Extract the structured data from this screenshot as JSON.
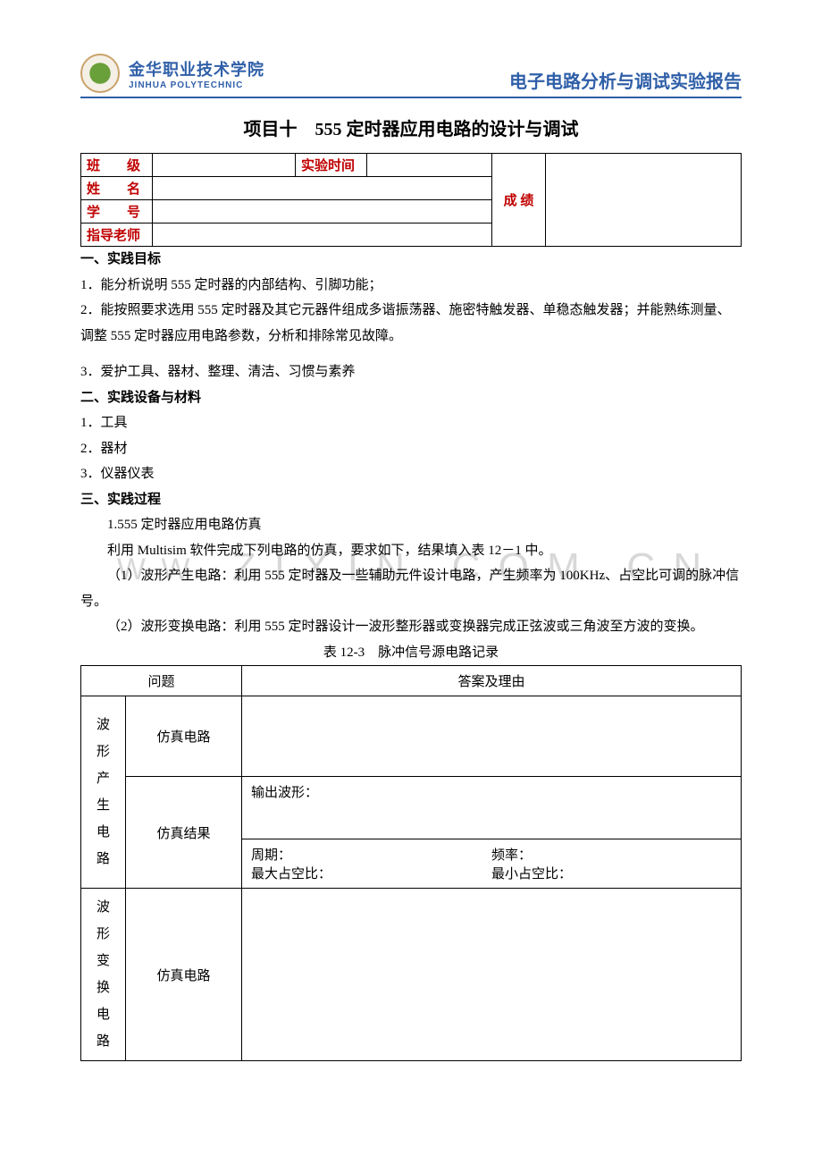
{
  "header": {
    "school_cn": "金华职业技术学院",
    "school_en": "JINHUA POLYTECHNIC",
    "doc_type": "电子电路分析与调试实验报告"
  },
  "title": "项目十　555 定时器应用电路的设计与调试",
  "info": {
    "class_lbl": "班　　级",
    "class_val": "",
    "time_lbl": "实验时间",
    "time_val": "",
    "name_lbl": "姓　　名",
    "name_val": "",
    "id_lbl": "学　　号",
    "id_val": "",
    "teacher_lbl": "指导老师",
    "teacher_val": "",
    "score_lbl": "成  绩",
    "score_val": ""
  },
  "sections": {
    "s1_h": "一、实践目标",
    "s1_1": "1．能分析说明 555 定时器的内部结构、引脚功能；",
    "s1_2": "2．能按照要求选用 555 定时器及其它元器件组成多谐振荡器、施密特触发器、单稳态触发器；并能熟练测量、调整 555 定时器应用电路参数，分析和排除常见故障。",
    "s1_3": "3．爱护工具、器材、整理、清洁、习惯与素养",
    "s2_h": "二、实践设备与材料",
    "s2_1": "1．工具",
    "s2_2": "2．器材",
    "s2_3": "3．仪器仪表",
    "s3_h": "三、实践过程",
    "s3_1": "1.555 定时器应用电路仿真",
    "s3_2": "利用 Multisim 软件完成下列电路的仿真，要求如下，结果填入表 12－1 中。",
    "s3_3": "（1）波形产生电路：利用 555 定时器及一些辅助元件设计电路，产生频率为 100KHz、占空比可调的脉冲信号。",
    "s3_4": "（2）波形变换电路：利用 555 定时器设计一波形整形器或变换器完成正弦波或三角波至方波的变换。"
  },
  "table": {
    "caption": "表 12-3　脉冲信号源电路记录",
    "col_q": "问题",
    "col_a": "答案及理由",
    "r1_lbl": "波形产生电路",
    "r1a_sub": "仿真电路",
    "r1b_sub": "仿真结果",
    "r1b_out": "输出波形：",
    "r1b_period": "周期：",
    "r1b_freq": "频率：",
    "r1b_dmax": "最大占空比：",
    "r1b_dmin": "最小占空比：",
    "r2_lbl": "波形变换电路",
    "r2_sub": "仿真电路"
  },
  "watermark": {
    "prefix": "W W .",
    "main": "Z I X I N . C O M . C N"
  }
}
